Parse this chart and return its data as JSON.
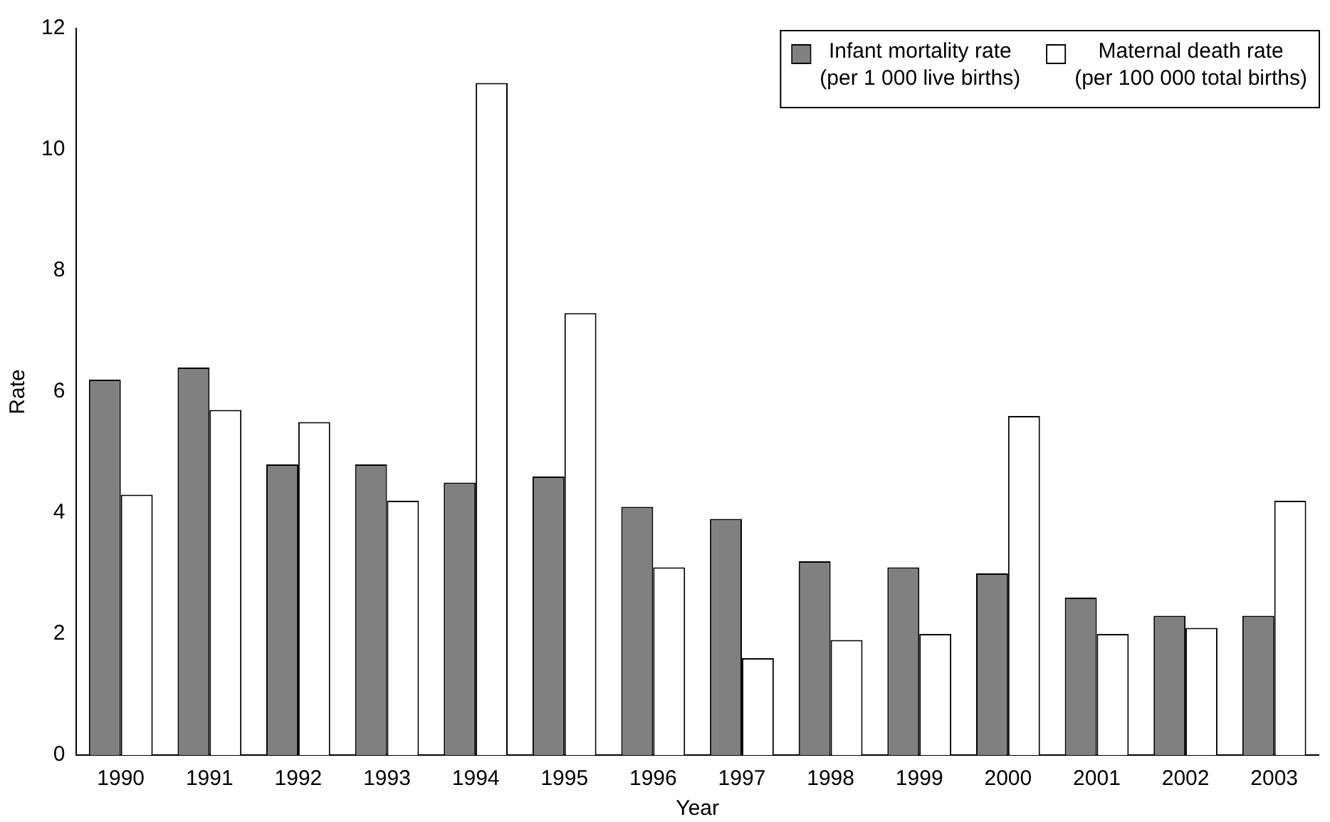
{
  "chart_data": {
    "type": "bar",
    "xlabel": "Year",
    "ylabel": "Rate",
    "categories": [
      "1990",
      "1991",
      "1992",
      "1993",
      "1994",
      "1995",
      "1996",
      "1997",
      "1998",
      "1999",
      "2000",
      "2001",
      "2002",
      "2003"
    ],
    "series": [
      {
        "name": "Infant mortality rate (per 1 000 live births)",
        "color": "#808080",
        "values": [
          6.2,
          6.4,
          4.8,
          4.8,
          4.5,
          4.6,
          4.1,
          3.9,
          3.2,
          3.1,
          3.0,
          2.6,
          2.3,
          2.3
        ]
      },
      {
        "name": "Maternal death rate (per 100 000 total births)",
        "color": "#ffffff",
        "values": [
          4.3,
          5.7,
          5.5,
          4.2,
          11.1,
          7.3,
          3.1,
          1.6,
          1.9,
          2.0,
          5.6,
          2.0,
          2.1,
          4.2
        ]
      }
    ],
    "ylim": [
      0,
      12
    ],
    "yticks": [
      0,
      2,
      4,
      6,
      8,
      10,
      12
    ],
    "grid": false,
    "legend": "top right"
  }
}
